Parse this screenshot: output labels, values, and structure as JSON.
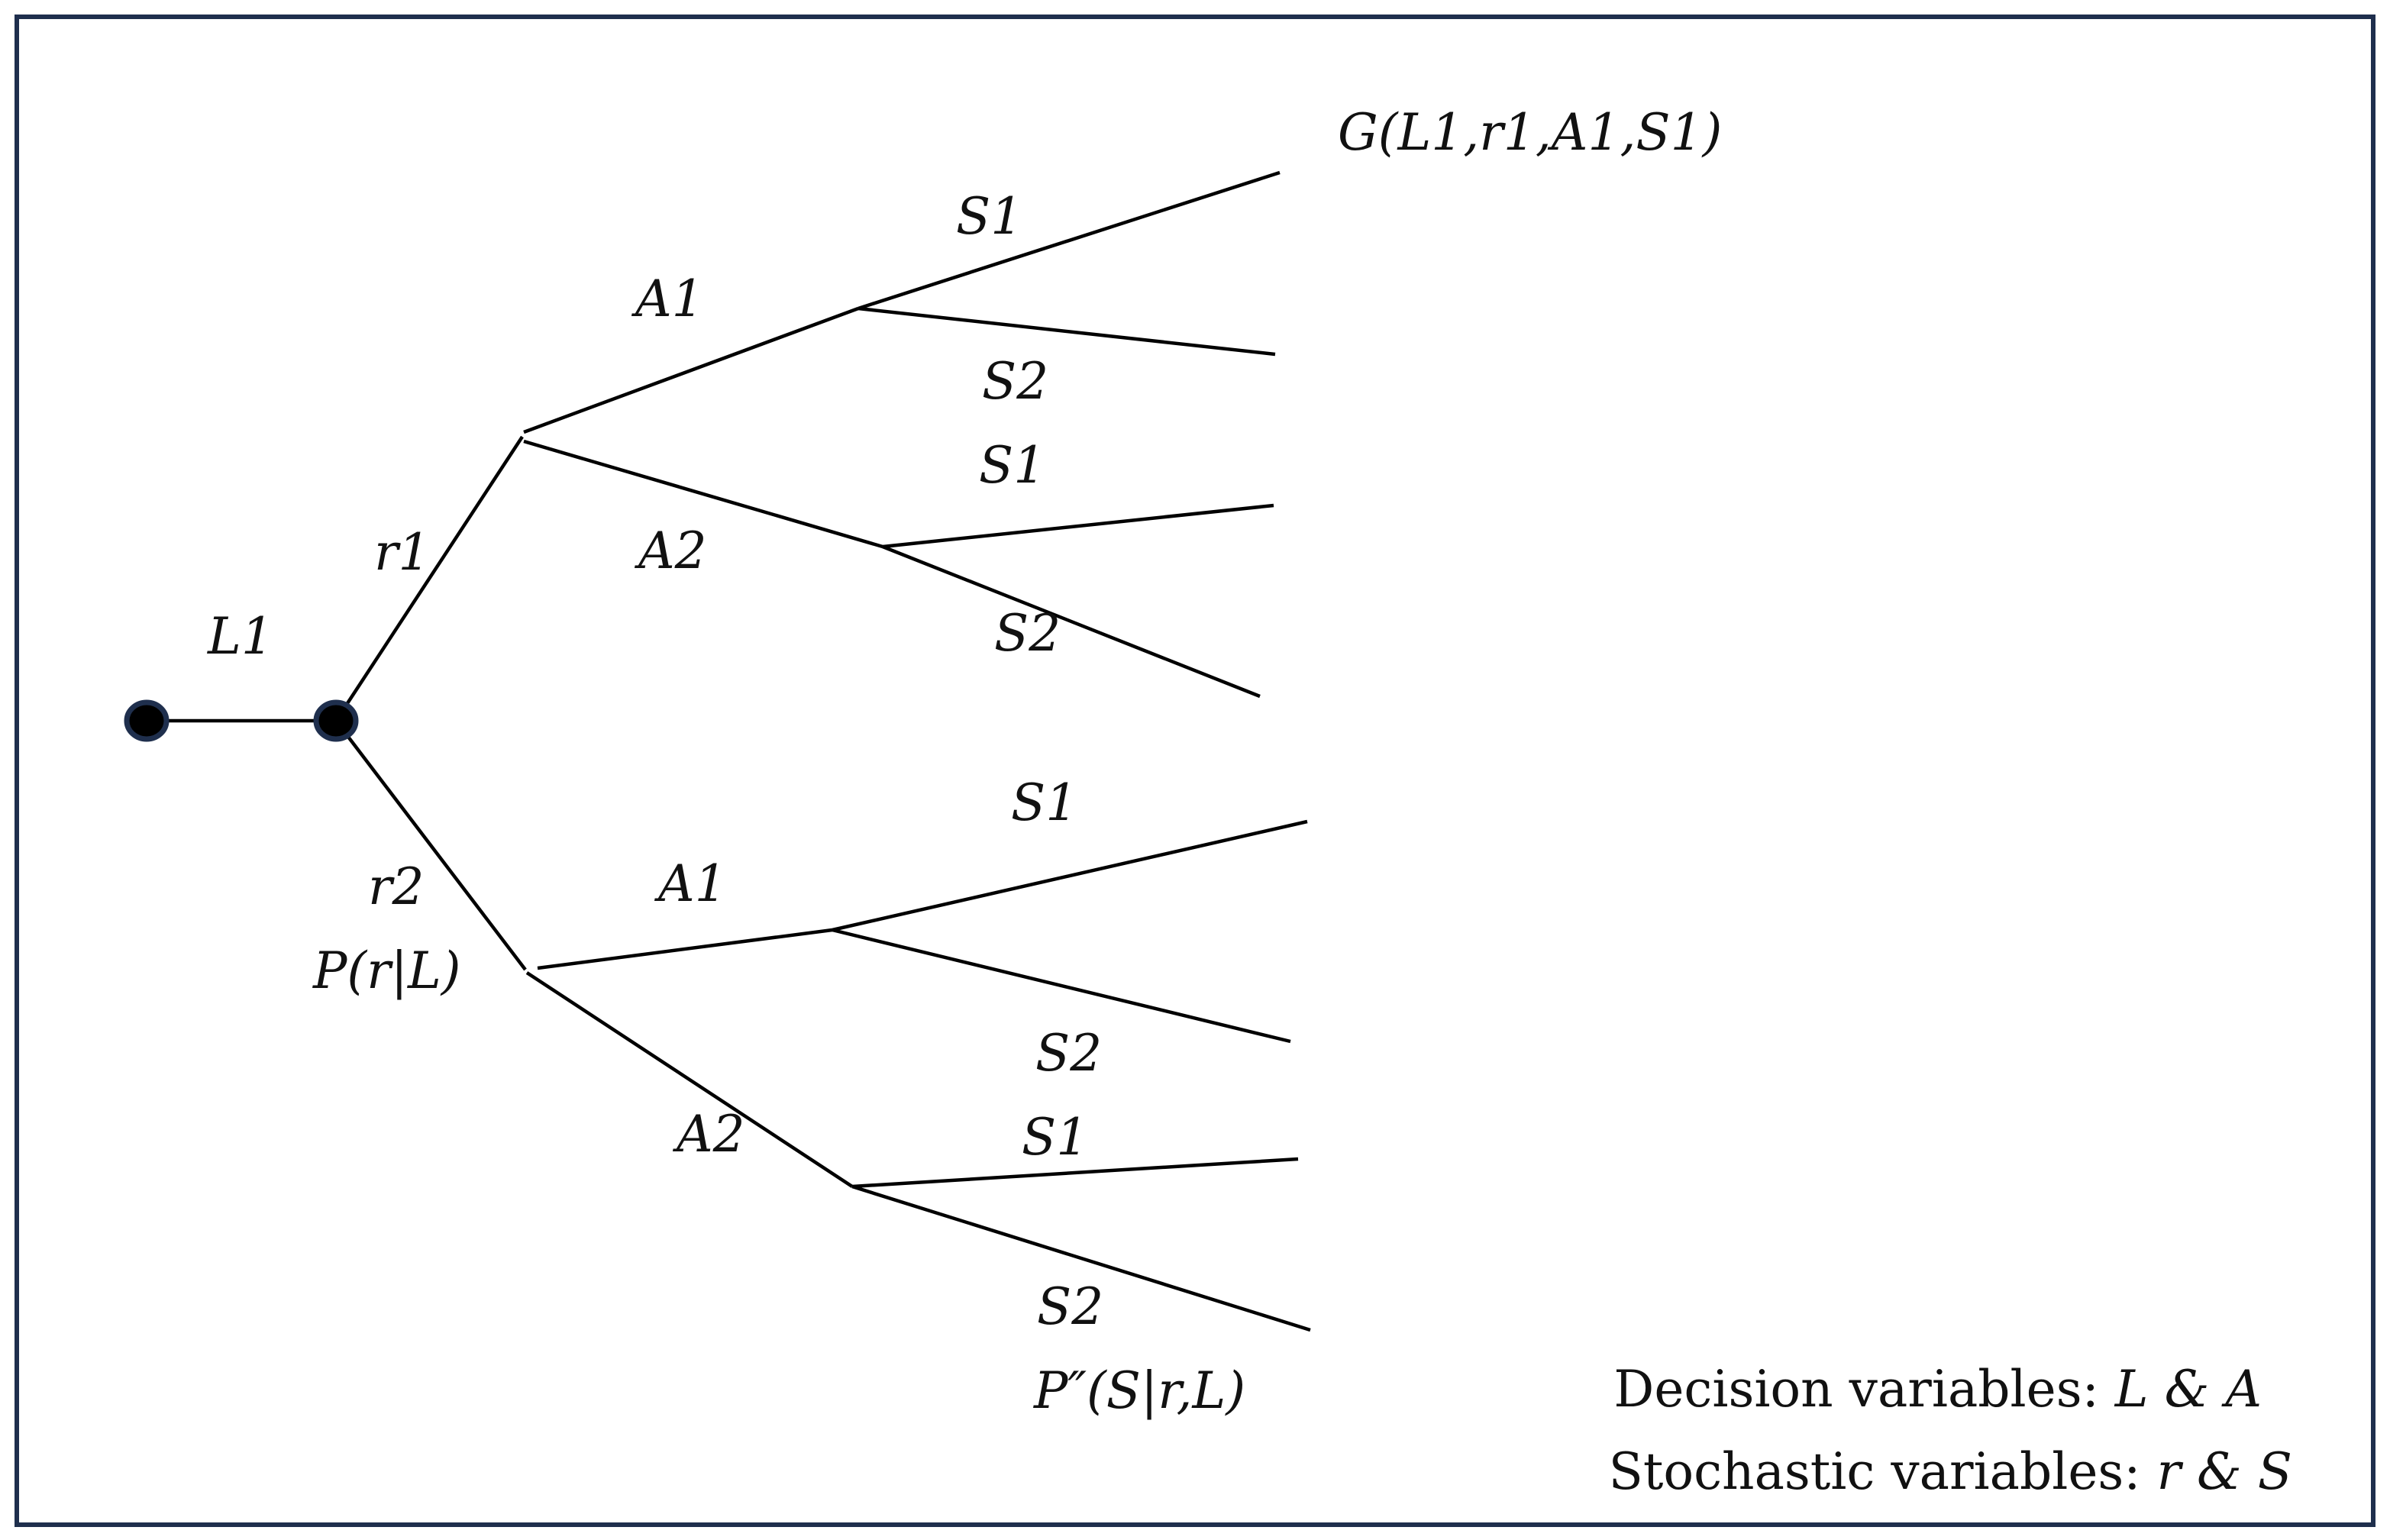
{
  "tree": {
    "nodes": [
      {
        "id": "root",
        "shape": "dot"
      },
      {
        "id": "n_L1",
        "shape": "dot"
      },
      {
        "id": "n_r1"
      },
      {
        "id": "n_r2"
      },
      {
        "id": "n_r1_A1"
      },
      {
        "id": "n_r1_A2"
      },
      {
        "id": "n_r2_A1"
      },
      {
        "id": "n_r2_A2"
      },
      {
        "id": "leaf1"
      },
      {
        "id": "leaf2"
      },
      {
        "id": "leaf3"
      },
      {
        "id": "leaf4"
      },
      {
        "id": "leaf5"
      },
      {
        "id": "leaf6"
      },
      {
        "id": "leaf7"
      },
      {
        "id": "leaf8"
      }
    ],
    "edges": [
      {
        "id": "e_L1",
        "from": "root",
        "to": "n_L1",
        "label": "L1"
      },
      {
        "id": "e_r1",
        "from": "n_L1",
        "to": "n_r1",
        "label": "r1"
      },
      {
        "id": "e_r2",
        "from": "n_L1",
        "to": "n_r2",
        "label": "r2"
      },
      {
        "id": "e_r1_A1",
        "from": "n_r1",
        "to": "n_r1_A1",
        "label": "A1"
      },
      {
        "id": "e_r1_A2",
        "from": "n_r1",
        "to": "n_r1_A2",
        "label": "A2"
      },
      {
        "id": "e_r2_A1",
        "from": "n_r2",
        "to": "n_r2_A1",
        "label": "A1"
      },
      {
        "id": "e_r2_A2",
        "from": "n_r2",
        "to": "n_r2_A2",
        "label": "A2"
      },
      {
        "id": "e_l1",
        "from": "n_r1_A1",
        "to": "leaf1",
        "label": "S1"
      },
      {
        "id": "e_l2",
        "from": "n_r1_A1",
        "to": "leaf2",
        "label": "S2"
      },
      {
        "id": "e_l3",
        "from": "n_r1_A2",
        "to": "leaf3",
        "label": "S1"
      },
      {
        "id": "e_l4",
        "from": "n_r1_A2",
        "to": "leaf4",
        "label": "S2"
      },
      {
        "id": "e_l5",
        "from": "n_r2_A1",
        "to": "leaf5",
        "label": "S1"
      },
      {
        "id": "e_l6",
        "from": "n_r2_A1",
        "to": "leaf6",
        "label": "S2"
      },
      {
        "id": "e_l7",
        "from": "n_r2_A2",
        "to": "leaf7",
        "label": "S1"
      },
      {
        "id": "e_l8",
        "from": "n_r2_A2",
        "to": "leaf8",
        "label": "S2"
      }
    ],
    "outcome_label": "G(L1,r1,A1,S1)",
    "prob_r_label": "P(r|L)",
    "prob_s_label": "P″(S|r,L)"
  },
  "legend": {
    "decision_prefix": "Decision variables: ",
    "decision_vars": "L & A",
    "stochastic_prefix": "Stochastic variables: ",
    "stochastic_vars": "r & S"
  }
}
